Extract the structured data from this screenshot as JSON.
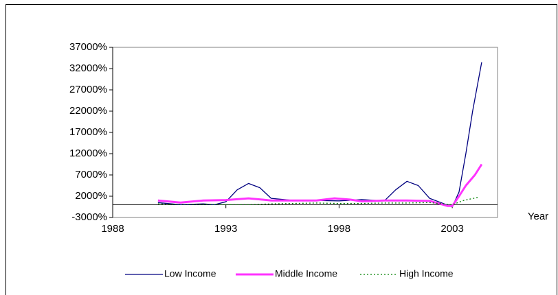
{
  "chart_data": {
    "type": "line",
    "x_label": "Year",
    "xlim": [
      1988,
      2005
    ],
    "xticks": [
      1988,
      1993,
      1998,
      2003
    ],
    "ylim": [
      -3000,
      37000
    ],
    "yticks": [
      {
        "value": -3000,
        "label": "-3000%"
      },
      {
        "value": 2000,
        "label": "2000%"
      },
      {
        "value": 7000,
        "label": "7000%"
      },
      {
        "value": 12000,
        "label": "12000%"
      },
      {
        "value": 17000,
        "label": "17000%"
      },
      {
        "value": 22000,
        "label": "22000%"
      },
      {
        "value": 27000,
        "label": "27000%"
      },
      {
        "value": 32000,
        "label": "32000%"
      },
      {
        "value": 37000,
        "label": "37000%"
      }
    ],
    "legend": "bottom",
    "series": [
      {
        "name": "Low Income",
        "color": "#000080",
        "style": "solid",
        "x": [
          1990,
          1991,
          1992,
          1992.5,
          1993,
          1993.5,
          1994,
          1994.5,
          1995,
          1996,
          1997,
          1998,
          1999,
          2000,
          2000.5,
          2001,
          2001.5,
          2002,
          2002.5,
          2003,
          2003.3,
          2003.6,
          2003.9,
          2004.3
        ],
        "values": [
          500,
          0,
          200,
          0,
          700,
          3500,
          5000,
          4000,
          1500,
          1000,
          1000,
          900,
          1200,
          900,
          3500,
          5500,
          4500,
          1500,
          500,
          -500,
          3000,
          12000,
          22000,
          33500
        ]
      },
      {
        "name": "Middle Income",
        "color": "#ff33ff",
        "style": "thick",
        "x": [
          1990,
          1991,
          1992,
          1993,
          1994,
          1995,
          1996,
          1997,
          1997.8,
          1998.5,
          1999,
          2000,
          2001,
          2002,
          2002.8,
          2003,
          2003.3,
          2003.6,
          2004,
          2004.3
        ],
        "values": [
          1000,
          500,
          1000,
          1100,
          1500,
          1000,
          1000,
          1000,
          1500,
          1200,
          800,
          1000,
          1000,
          900,
          -300,
          -300,
          2000,
          4500,
          7000,
          9500
        ]
      },
      {
        "name": "High Income",
        "color": "#008000",
        "style": "dotted",
        "x": [
          1990,
          1991,
          1992,
          1993,
          1994,
          1995,
          1996,
          1997,
          1998,
          1999,
          2000,
          2001,
          2002,
          2003,
          2003.5,
          2004.2
        ],
        "values": [
          200,
          100,
          100,
          0,
          0,
          200,
          300,
          400,
          300,
          300,
          400,
          400,
          500,
          0,
          1000,
          1800
        ]
      }
    ]
  }
}
